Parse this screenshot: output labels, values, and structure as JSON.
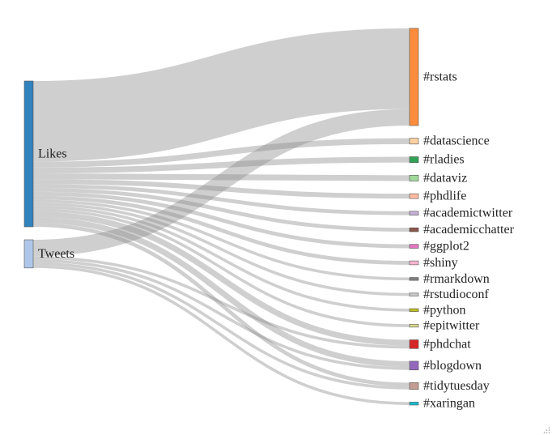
{
  "sources": [
    {
      "id": "likes",
      "label": "Likes",
      "color": "#3182bd"
    },
    {
      "id": "tweets",
      "label": "Tweets",
      "color": "#aec7e8"
    }
  ],
  "targets": [
    {
      "id": "rstats",
      "label": "#rstats",
      "color": "#fd8d3c"
    },
    {
      "id": "datascience",
      "label": "#datascience",
      "color": "#fdd0a2"
    },
    {
      "id": "rladies",
      "label": "#rladies",
      "color": "#31a354"
    },
    {
      "id": "dataviz",
      "label": "#dataviz",
      "color": "#a1d99b"
    },
    {
      "id": "phdlife",
      "label": "#phdlife",
      "color": "#fcbba1"
    },
    {
      "id": "academictwitter",
      "label": "#academictwitter",
      "color": "#c5b0d5"
    },
    {
      "id": "academicchatter",
      "label": "#academicchatter",
      "color": "#8c564b"
    },
    {
      "id": "ggplot2",
      "label": "#ggplot2",
      "color": "#e377c2"
    },
    {
      "id": "shiny",
      "label": "#shiny",
      "color": "#f7b6d2"
    },
    {
      "id": "rmarkdown",
      "label": "#rmarkdown",
      "color": "#7f7f7f"
    },
    {
      "id": "rstudioconf",
      "label": "#rstudioconf",
      "color": "#c7c7c7"
    },
    {
      "id": "python",
      "label": "#python",
      "color": "#bcbd22"
    },
    {
      "id": "epitwitter",
      "label": "#epitwitter",
      "color": "#dbdb8d"
    },
    {
      "id": "phdchat",
      "label": "#phdchat",
      "color": "#d62728"
    },
    {
      "id": "blogdown",
      "label": "#blogdown",
      "color": "#9467bd"
    },
    {
      "id": "tidytuesday",
      "label": "#tidytuesday",
      "color": "#c49c94"
    },
    {
      "id": "xaringan",
      "label": "#xaringan",
      "color": "#17becf"
    }
  ],
  "links": [
    {
      "source": "likes",
      "target": "rstats",
      "value": 83
    },
    {
      "source": "tweets",
      "target": "rstats",
      "value": 17
    },
    {
      "source": "likes",
      "target": "datascience",
      "value": 6
    },
    {
      "source": "likes",
      "target": "rladies",
      "value": 6
    },
    {
      "source": "likes",
      "target": "dataviz",
      "value": 6
    },
    {
      "source": "likes",
      "target": "phdlife",
      "value": 5
    },
    {
      "source": "likes",
      "target": "academictwitter",
      "value": 4
    },
    {
      "source": "likes",
      "target": "academicchatter",
      "value": 4
    },
    {
      "source": "likes",
      "target": "ggplot2",
      "value": 4
    },
    {
      "source": "likes",
      "target": "shiny",
      "value": 4
    },
    {
      "source": "likes",
      "target": "rmarkdown",
      "value": 3
    },
    {
      "source": "likes",
      "target": "rstudioconf",
      "value": 3
    },
    {
      "source": "likes",
      "target": "python",
      "value": 3
    },
    {
      "source": "likes",
      "target": "epitwitter",
      "value": 3
    },
    {
      "source": "likes",
      "target": "phdchat",
      "value": 6
    },
    {
      "source": "tweets",
      "target": "phdchat",
      "value": 3
    },
    {
      "source": "likes",
      "target": "blogdown",
      "value": 6
    },
    {
      "source": "tweets",
      "target": "blogdown",
      "value": 3
    },
    {
      "source": "likes",
      "target": "tidytuesday",
      "value": 4
    },
    {
      "source": "tweets",
      "target": "tidytuesday",
      "value": 3
    },
    {
      "source": "tweets",
      "target": "xaringan",
      "value": 3
    }
  ]
}
